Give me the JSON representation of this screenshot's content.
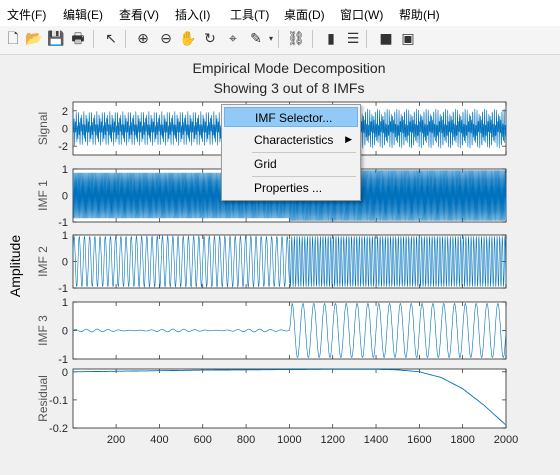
{
  "menu": [
    "文件(F)",
    "编辑(E)",
    "查看(V)",
    "插入(I)",
    "工具(T)",
    "桌面(D)",
    "窗口(W)",
    "帮助(H)"
  ],
  "toolbar": [
    {
      "icon": "new-file-icon",
      "glyph": "🗋"
    },
    {
      "icon": "open-folder-icon",
      "glyph": "📂"
    },
    {
      "icon": "save-icon",
      "glyph": "💾"
    },
    {
      "icon": "print-icon",
      "glyph": "🖶"
    },
    {
      "icon": "pointer-icon",
      "glyph": "↖"
    },
    {
      "icon": "zoom-in-icon",
      "glyph": "⊕"
    },
    {
      "icon": "zoom-out-icon",
      "glyph": "⊖"
    },
    {
      "icon": "pan-icon",
      "glyph": "✋"
    },
    {
      "icon": "rotate-3d-icon",
      "glyph": "↻"
    },
    {
      "icon": "data-cursor-icon",
      "glyph": "⌖"
    },
    {
      "icon": "brush-icon",
      "glyph": "✎"
    },
    {
      "icon": "link-plot-icon",
      "glyph": "⛓"
    },
    {
      "icon": "colorbar-icon",
      "glyph": "▮"
    },
    {
      "icon": "legend-icon",
      "glyph": "☰"
    },
    {
      "icon": "hide-plot-tools-icon",
      "glyph": "■"
    },
    {
      "icon": "show-plot-tools-icon",
      "glyph": "▣"
    }
  ],
  "context_menu": {
    "items": [
      {
        "label": "IMF Selector...",
        "submenu": false
      },
      {
        "label": "Characteristics",
        "submenu": true
      },
      {
        "label": "Grid",
        "submenu": false
      },
      {
        "label": "Properties ...",
        "submenu": false
      }
    ]
  },
  "colors": {
    "line": "#0072bd",
    "highlight": "#91c9f7"
  },
  "chart_data": {
    "type": "line",
    "title": "Empirical Mode Decomposition",
    "subtitle": "Showing 3 out of 8 IMFs",
    "ylabel": "Amplitude",
    "x_ticks": [
      200,
      400,
      600,
      800,
      1000,
      1200,
      1400,
      1600,
      1800,
      2000
    ],
    "xlim": [
      1,
      2000
    ],
    "grid": false,
    "panels": [
      {
        "name": "Signal",
        "ylim": [
          -3,
          3
        ],
        "yticks": [
          -2,
          0,
          2
        ],
        "description_values": {
          "segment1": {
            "x": [
              1,
              1000
            ],
            "amp": 2,
            "period": 12
          },
          "segment2": {
            "x": [
              1000,
              2000
            ],
            "amp": 2.3,
            "period": 9
          }
        }
      },
      {
        "name": "IMF 1",
        "ylim": [
          -1,
          1
        ],
        "yticks": [
          -1,
          0,
          1
        ],
        "description_values": {
          "segment1": {
            "x": [
              1,
              1000
            ],
            "amp": 0.9,
            "period": 5
          },
          "segment2": {
            "x": [
              1000,
              2000
            ],
            "amp": 1.0,
            "period": 5
          }
        }
      },
      {
        "name": "IMF 2",
        "ylim": [
          -1,
          1
        ],
        "yticks": [
          -1,
          0,
          1
        ],
        "description_values": {
          "segment1": {
            "x": [
              1,
              1000
            ],
            "amp": 0.95,
            "period": 24
          },
          "segment2": {
            "x": [
              1000,
              2000
            ],
            "amp": 0.95,
            "period": 12
          }
        }
      },
      {
        "name": "IMF 3",
        "ylim": [
          -1,
          1
        ],
        "yticks": [
          -1,
          0,
          1
        ],
        "description_values": {
          "segment1": {
            "x": [
              1,
              1000
            ],
            "amp": 0.05,
            "period": 50
          },
          "segment2": {
            "x": [
              1000,
              2000
            ],
            "amp": 0.95,
            "period": 50
          }
        }
      },
      {
        "name": "Residual",
        "ylim": [
          -0.2,
          0.01
        ],
        "yticks": [
          -0.2,
          -0.1,
          0
        ],
        "residual": {
          "x": [
            1,
            200,
            400,
            600,
            800,
            1000,
            1200,
            1400,
            1500,
            1600,
            1700,
            1800,
            1900,
            2000
          ],
          "y": [
            0,
            0.002,
            0.004,
            0.006,
            0.007,
            0.008,
            0.009,
            0.009,
            0.007,
            0.0,
            -0.02,
            -0.06,
            -0.12,
            -0.19
          ]
        }
      }
    ]
  }
}
